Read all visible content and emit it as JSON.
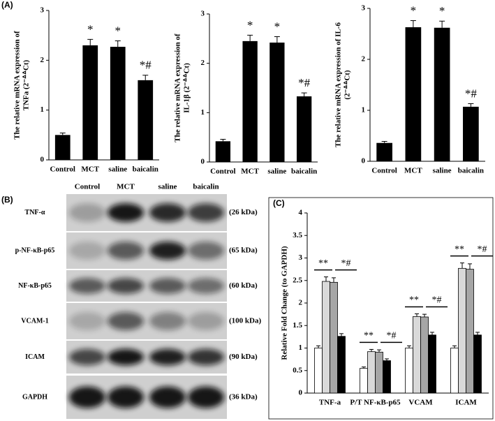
{
  "panel_labels": [
    "(A)",
    "(B)",
    "(C)"
  ],
  "chart_data": [
    {
      "type": "bar",
      "ylabel": [
        "The relative mRNA expression of",
        "TNFa (2⁻ᐞᐞCt)"
      ],
      "categories": [
        "Control",
        "MCT",
        "saline",
        "baicalin"
      ],
      "values": [
        0.5,
        2.3,
        2.27,
        1.6
      ],
      "errors": [
        0.04,
        0.12,
        0.12,
        0.1
      ],
      "annotations": [
        null,
        "*",
        "*",
        "*#"
      ],
      "color": "#000000",
      "ylim": [
        0,
        3
      ],
      "yticks": [
        0,
        1,
        2,
        3
      ]
    },
    {
      "type": "bar",
      "ylabel": [
        "The relative mRNA expression of",
        "IL-1β (2⁻ᐞᐞCt)"
      ],
      "categories": [
        "Control",
        "MCT",
        "saline",
        "baicalin"
      ],
      "values": [
        0.42,
        2.45,
        2.42,
        1.33
      ],
      "errors": [
        0.04,
        0.12,
        0.12,
        0.07
      ],
      "annotations": [
        null,
        "*",
        "*",
        "*#"
      ],
      "color": "#000000",
      "ylim": [
        0,
        3
      ],
      "yticks": [
        0,
        1,
        2,
        3
      ]
    },
    {
      "type": "bar",
      "ylabel": [
        "The relative mRNA expression of IL-6",
        "(2⁻ᐞᐞCt)"
      ],
      "categories": [
        "Control",
        "MCT",
        "saline",
        "baicalin"
      ],
      "values": [
        0.36,
        2.63,
        2.62,
        1.07
      ],
      "errors": [
        0.03,
        0.13,
        0.13,
        0.06
      ],
      "annotations": [
        null,
        "*",
        "*",
        "*#"
      ],
      "color": "#000000",
      "ylim": [
        0,
        3
      ],
      "yticks": [
        0,
        1,
        2,
        3
      ]
    },
    {
      "type": "grouped-bar",
      "ylabel": [
        "Relative Fold Change (to GAPDH)"
      ],
      "categories": [
        "TNF-a",
        "P/T NF-κB-p65",
        "VCAM",
        "ICAM"
      ],
      "series": [
        {
          "color": "#ffffff",
          "values": [
            1.0,
            0.55,
            1.0,
            1.0
          ],
          "errors": [
            0.05,
            0.03,
            0.05,
            0.05
          ]
        },
        {
          "color": "#d9d9d9",
          "values": [
            2.48,
            0.92,
            1.7,
            2.77
          ],
          "errors": [
            0.1,
            0.05,
            0.06,
            0.12
          ]
        },
        {
          "color": "#a6a6a6",
          "values": [
            2.46,
            0.91,
            1.69,
            2.75
          ],
          "errors": [
            0.1,
            0.05,
            0.06,
            0.12
          ]
        },
        {
          "color": "#000000",
          "values": [
            1.26,
            0.72,
            1.29,
            1.29
          ],
          "errors": [
            0.06,
            0.04,
            0.06,
            0.06
          ]
        }
      ],
      "annotations": [
        [
          "**",
          "*#"
        ],
        [
          "**",
          "*#"
        ],
        [
          "**",
          "*#"
        ],
        [
          "**",
          "*#"
        ]
      ],
      "ylim": [
        0,
        4
      ],
      "yticks": [
        0,
        0.5,
        1,
        1.5,
        2,
        2.5,
        3,
        3.5,
        4
      ]
    }
  ],
  "blot": {
    "columns": [
      "Control",
      "MCT",
      "saline",
      "baicalin"
    ],
    "rows": [
      {
        "name": "TNF-α",
        "size": "(26 kDa)"
      },
      {
        "name": "p-NF-κB-p65",
        "size": "(65 kDa)"
      },
      {
        "name": "NF-κB-p65",
        "size": "(60 kDa)"
      },
      {
        "name": "VCAM-1",
        "size": "(100 kDa)"
      },
      {
        "name": "ICAM",
        "size": "(90 kDa)"
      },
      {
        "name": "GAPDH",
        "size": "(36 kDa)"
      }
    ]
  }
}
